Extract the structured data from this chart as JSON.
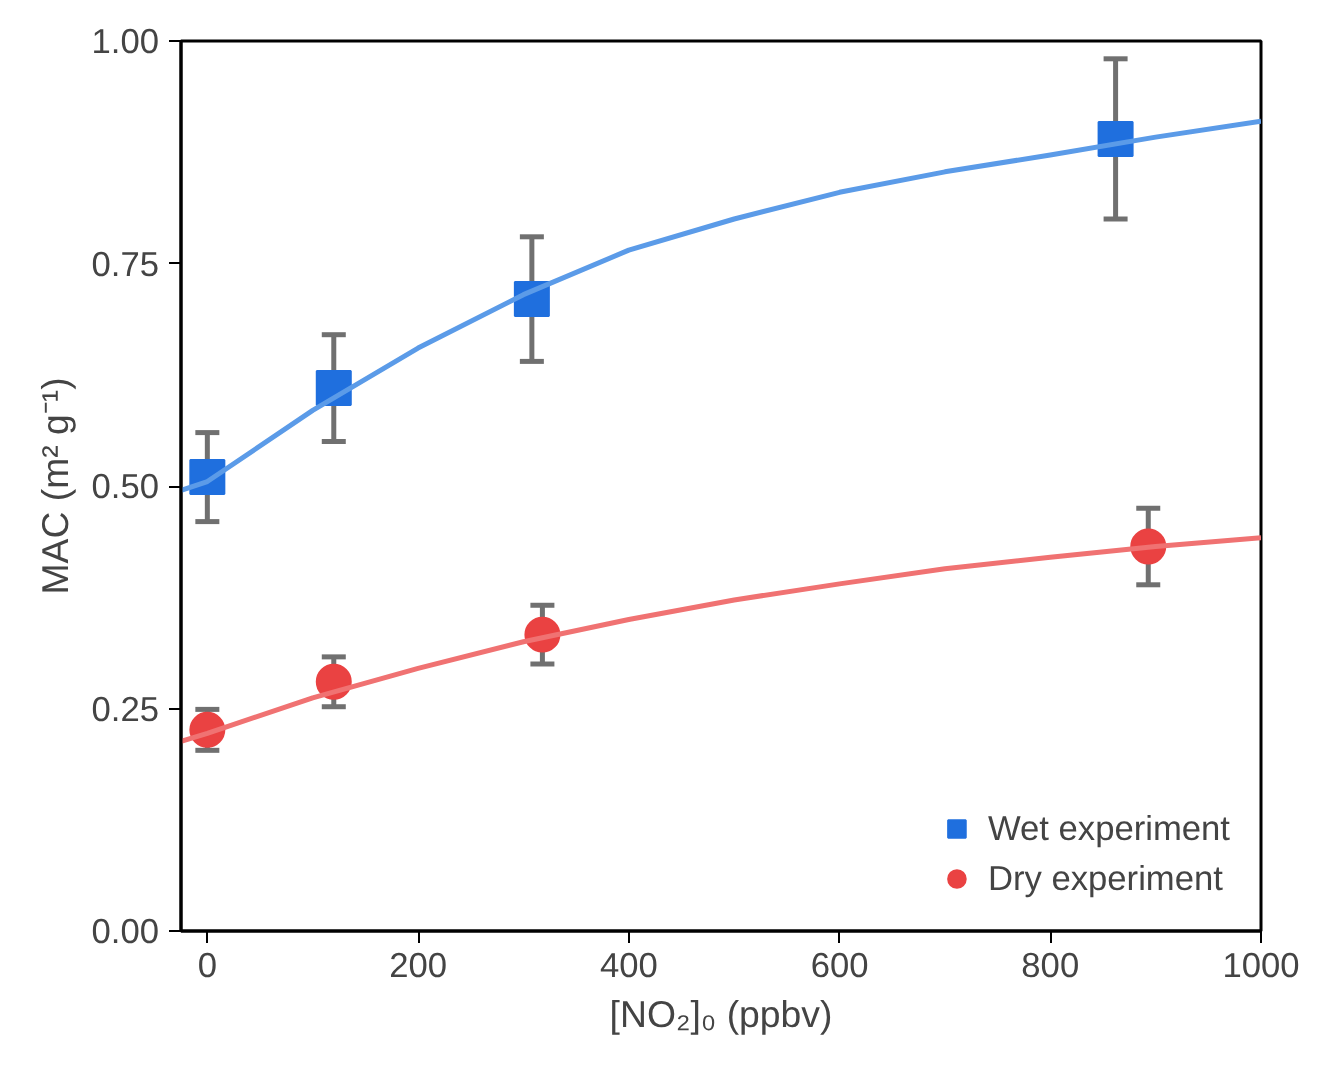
{
  "chart_data": {
    "type": "scatter",
    "xlabel": "[NO₂]₀ (ppbv)",
    "ylabel": "MAC (m² g⁻¹)",
    "xlim": [
      -25,
      1000
    ],
    "ylim": [
      0,
      1
    ],
    "xticks": [
      0,
      200,
      400,
      600,
      800,
      1000
    ],
    "yticks": [
      {
        "value": 0,
        "label": "0.00"
      },
      {
        "value": 0.25,
        "label": "0.25"
      },
      {
        "value": 0.5,
        "label": "0.50"
      },
      {
        "value": 0.75,
        "label": "0.75"
      },
      {
        "value": 1,
        "label": "1.00"
      }
    ],
    "grid": false,
    "legend": "bottom right",
    "series": [
      {
        "name": "Wet experiment",
        "marker": "square",
        "color": "#1f6fde",
        "x": [
          0,
          120,
          308,
          862
        ],
        "values": [
          0.51,
          0.61,
          0.71,
          0.89
        ],
        "errors": [
          0.05,
          0.06,
          0.07,
          0.09
        ]
      },
      {
        "name": "Dry experiment",
        "marker": "circle",
        "color": "#ea4242",
        "x": [
          0,
          120,
          318,
          893
        ],
        "values": [
          0.226,
          0.28,
          0.333,
          0.432
        ],
        "errors": [
          0.023,
          0.028,
          0.033,
          0.043
        ]
      },
      {
        "type": "line",
        "color": "#5b9be8",
        "x": [
          -25,
          0,
          100,
          200,
          300,
          400,
          500,
          600,
          700,
          800,
          900,
          1000
        ],
        "values": [
          0.495,
          0.505,
          0.585,
          0.655,
          0.715,
          0.765,
          0.8,
          0.83,
          0.853,
          0.872,
          0.892,
          0.91
        ]
      },
      {
        "type": "line",
        "color": "#f07272",
        "x": [
          -25,
          0,
          100,
          200,
          300,
          400,
          500,
          600,
          700,
          800,
          900,
          1000
        ],
        "values": [
          0.213,
          0.222,
          0.262,
          0.295,
          0.325,
          0.35,
          0.372,
          0.39,
          0.407,
          0.42,
          0.432,
          0.442
        ]
      }
    ]
  }
}
